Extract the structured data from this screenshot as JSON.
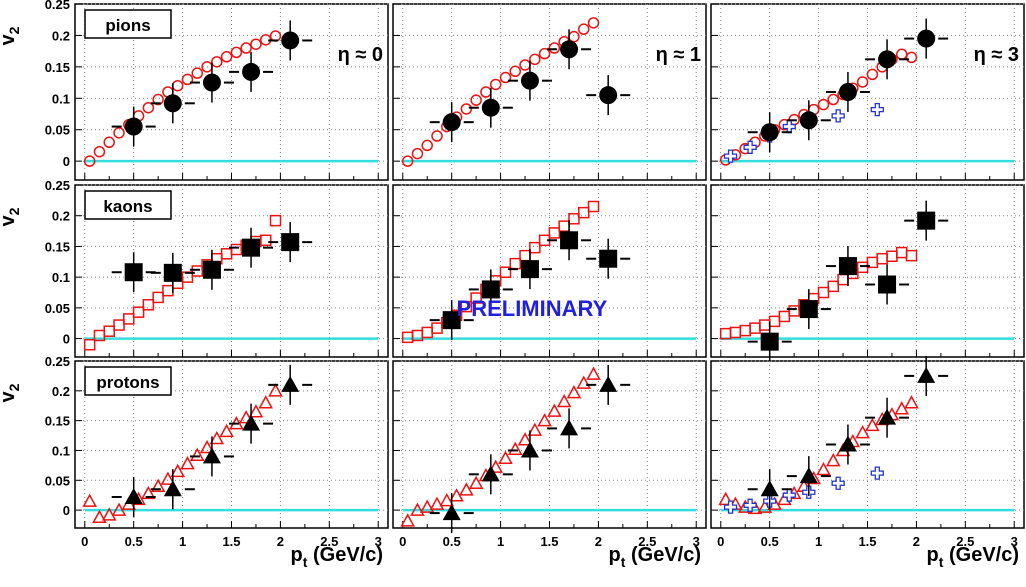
{
  "chart_data": {
    "type": "scatter",
    "layout": "3x3 grid of panels, rows = particle species, columns = pseudorapidity",
    "x_axis": {
      "label_main": "p",
      "label_sub": "t",
      "label_unit": "(GeV/c)",
      "range": [
        -0.1,
        3.1
      ],
      "ticks": [
        0,
        0.5,
        1,
        1.5,
        2,
        2.5,
        3
      ],
      "tick_labels": [
        "0",
        "0.5",
        "1",
        "1.5",
        "2",
        "2.5",
        "3"
      ]
    },
    "y_axis": {
      "label_main": "v",
      "label_sub": "2",
      "range": [
        -0.03,
        0.25
      ],
      "ticks": [
        0,
        0.05,
        0.1,
        0.15,
        0.2,
        0.25
      ],
      "tick_labels": [
        "0",
        "0.05",
        "0.1",
        "0.15",
        "0.2",
        "0.25"
      ]
    },
    "grid": true,
    "reference_line_color": "#33dddd",
    "preliminary_label": "PRELIMINARY",
    "preliminary_color": "#2020dd",
    "colors": {
      "measured": "#000000",
      "reference": "#ee1111",
      "forward": "#2233cc"
    },
    "rows": [
      {
        "species": "pions",
        "marker": "circle"
      },
      {
        "species": "kaons",
        "marker": "square"
      },
      {
        "species": "protons",
        "marker": "triangle"
      }
    ],
    "columns": [
      {
        "eta_label": "η ≈ 0"
      },
      {
        "eta_label": "η ≈ 1"
      },
      {
        "eta_label": "η ≈ 3"
      }
    ],
    "panels": [
      [
        {
          "black": [
            [
              0.5,
              0.055
            ],
            [
              0.9,
              0.092
            ],
            [
              1.3,
              0.125
            ],
            [
              1.7,
              0.142
            ],
            [
              2.1,
              0.192
            ]
          ],
          "red": [
            [
              0.05,
              0.0
            ],
            [
              0.15,
              0.015
            ],
            [
              0.25,
              0.03
            ],
            [
              0.35,
              0.045
            ],
            [
              0.45,
              0.058
            ],
            [
              0.55,
              0.072
            ],
            [
              0.65,
              0.085
            ],
            [
              0.75,
              0.098
            ],
            [
              0.85,
              0.11
            ],
            [
              0.95,
              0.12
            ],
            [
              1.05,
              0.13
            ],
            [
              1.15,
              0.14
            ],
            [
              1.25,
              0.15
            ],
            [
              1.35,
              0.158
            ],
            [
              1.45,
              0.166
            ],
            [
              1.55,
              0.173
            ],
            [
              1.65,
              0.18
            ],
            [
              1.75,
              0.186
            ],
            [
              1.85,
              0.193
            ],
            [
              1.95,
              0.199
            ]
          ],
          "blue": []
        },
        {
          "black": [
            [
              0.5,
              0.062
            ],
            [
              0.9,
              0.085
            ],
            [
              1.3,
              0.128
            ],
            [
              1.7,
              0.178
            ],
            [
              2.1,
              0.105
            ]
          ],
          "red": [
            [
              0.05,
              0.0
            ],
            [
              0.15,
              0.012
            ],
            [
              0.25,
              0.025
            ],
            [
              0.35,
              0.04
            ],
            [
              0.45,
              0.055
            ],
            [
              0.55,
              0.07
            ],
            [
              0.65,
              0.083
            ],
            [
              0.75,
              0.097
            ],
            [
              0.85,
              0.11
            ],
            [
              0.95,
              0.122
            ],
            [
              1.05,
              0.133
            ],
            [
              1.15,
              0.143
            ],
            [
              1.25,
              0.153
            ],
            [
              1.35,
              0.162
            ],
            [
              1.45,
              0.171
            ],
            [
              1.55,
              0.18
            ],
            [
              1.65,
              0.19
            ],
            [
              1.75,
              0.198
            ],
            [
              1.85,
              0.21
            ],
            [
              1.95,
              0.22
            ]
          ],
          "blue": []
        },
        {
          "black": [
            [
              0.5,
              0.046
            ],
            [
              0.9,
              0.065
            ],
            [
              1.3,
              0.11
            ],
            [
              1.7,
              0.162
            ],
            [
              2.1,
              0.195
            ]
          ],
          "red": [
            [
              0.05,
              0.002
            ],
            [
              0.15,
              0.01
            ],
            [
              0.25,
              0.02
            ],
            [
              0.35,
              0.03
            ],
            [
              0.45,
              0.04
            ],
            [
              0.55,
              0.05
            ],
            [
              0.65,
              0.058
            ],
            [
              0.75,
              0.066
            ],
            [
              0.85,
              0.074
            ],
            [
              0.95,
              0.082
            ],
            [
              1.05,
              0.09
            ],
            [
              1.15,
              0.098
            ],
            [
              1.25,
              0.106
            ],
            [
              1.35,
              0.116
            ],
            [
              1.45,
              0.126
            ],
            [
              1.55,
              0.138
            ],
            [
              1.65,
              0.15
            ],
            [
              1.75,
              0.162
            ],
            [
              1.85,
              0.17
            ],
            [
              1.95,
              0.165
            ]
          ],
          "blue": [
            [
              0.1,
              0.008
            ],
            [
              0.3,
              0.022
            ],
            [
              0.5,
              0.04
            ],
            [
              0.7,
              0.055
            ],
            [
              0.9,
              0.062
            ],
            [
              1.2,
              0.072
            ],
            [
              1.6,
              0.082
            ]
          ]
        }
      ],
      [
        {
          "black": [
            [
              0.5,
              0.108
            ],
            [
              0.9,
              0.107
            ],
            [
              1.3,
              0.112
            ],
            [
              1.7,
              0.148
            ],
            [
              2.1,
              0.157
            ]
          ],
          "red": [
            [
              0.05,
              -0.01
            ],
            [
              0.15,
              0.005
            ],
            [
              0.25,
              0.012
            ],
            [
              0.35,
              0.022
            ],
            [
              0.45,
              0.032
            ],
            [
              0.55,
              0.043
            ],
            [
              0.65,
              0.055
            ],
            [
              0.75,
              0.067
            ],
            [
              0.85,
              0.078
            ],
            [
              0.95,
              0.09
            ],
            [
              1.05,
              0.1
            ],
            [
              1.15,
              0.11
            ],
            [
              1.25,
              0.12
            ],
            [
              1.35,
              0.13
            ],
            [
              1.45,
              0.138
            ],
            [
              1.55,
              0.145
            ],
            [
              1.65,
              0.152
            ],
            [
              1.75,
              0.158
            ],
            [
              1.85,
              0.16
            ],
            [
              1.95,
              0.192
            ]
          ],
          "blue": []
        },
        {
          "black": [
            [
              0.5,
              0.03
            ],
            [
              0.9,
              0.08
            ],
            [
              1.3,
              0.113
            ],
            [
              1.7,
              0.16
            ],
            [
              2.1,
              0.13
            ]
          ],
          "red": [
            [
              0.05,
              0.002
            ],
            [
              0.15,
              0.005
            ],
            [
              0.25,
              0.01
            ],
            [
              0.35,
              0.017
            ],
            [
              0.45,
              0.026
            ],
            [
              0.55,
              0.038
            ],
            [
              0.65,
              0.052
            ],
            [
              0.75,
              0.066
            ],
            [
              0.85,
              0.08
            ],
            [
              0.95,
              0.094
            ],
            [
              1.05,
              0.108
            ],
            [
              1.15,
              0.122
            ],
            [
              1.25,
              0.135
            ],
            [
              1.35,
              0.148
            ],
            [
              1.45,
              0.16
            ],
            [
              1.55,
              0.172
            ],
            [
              1.65,
              0.183
            ],
            [
              1.75,
              0.195
            ],
            [
              1.85,
              0.205
            ],
            [
              1.95,
              0.215
            ]
          ],
          "blue": []
        },
        {
          "black": [
            [
              0.5,
              -0.005
            ],
            [
              0.9,
              0.048
            ],
            [
              1.3,
              0.118
            ],
            [
              1.7,
              0.088
            ],
            [
              2.1,
              0.192
            ]
          ],
          "red": [
            [
              0.05,
              0.008
            ],
            [
              0.15,
              0.01
            ],
            [
              0.25,
              0.013
            ],
            [
              0.35,
              0.017
            ],
            [
              0.45,
              0.022
            ],
            [
              0.55,
              0.028
            ],
            [
              0.65,
              0.036
            ],
            [
              0.75,
              0.045
            ],
            [
              0.85,
              0.055
            ],
            [
              0.95,
              0.065
            ],
            [
              1.05,
              0.075
            ],
            [
              1.15,
              0.085
            ],
            [
              1.25,
              0.096
            ],
            [
              1.35,
              0.106
            ],
            [
              1.45,
              0.116
            ],
            [
              1.55,
              0.124
            ],
            [
              1.65,
              0.13
            ],
            [
              1.75,
              0.134
            ],
            [
              1.85,
              0.14
            ],
            [
              1.95,
              0.135
            ]
          ],
          "blue": []
        }
      ],
      [
        {
          "black": [
            [
              0.5,
              0.022
            ],
            [
              0.9,
              0.035
            ],
            [
              1.3,
              0.09
            ],
            [
              1.7,
              0.145
            ],
            [
              2.1,
              0.21
            ]
          ],
          "red": [
            [
              0.05,
              0.015
            ],
            [
              0.15,
              -0.012
            ],
            [
              0.25,
              -0.008
            ],
            [
              0.35,
              0.0
            ],
            [
              0.45,
              0.01
            ],
            [
              0.55,
              0.018
            ],
            [
              0.65,
              0.028
            ],
            [
              0.75,
              0.04
            ],
            [
              0.85,
              0.052
            ],
            [
              0.95,
              0.065
            ],
            [
              1.05,
              0.078
            ],
            [
              1.15,
              0.092
            ],
            [
              1.25,
              0.105
            ],
            [
              1.35,
              0.12
            ],
            [
              1.45,
              0.132
            ],
            [
              1.55,
              0.145
            ],
            [
              1.65,
              0.155
            ],
            [
              1.75,
              0.165
            ],
            [
              1.85,
              0.18
            ],
            [
              1.95,
              0.2
            ]
          ],
          "blue": []
        },
        {
          "black": [
            [
              0.5,
              -0.005
            ],
            [
              0.9,
              0.06
            ],
            [
              1.3,
              0.1
            ],
            [
              1.7,
              0.137
            ],
            [
              2.1,
              0.21
            ]
          ],
          "red": [
            [
              0.05,
              -0.018
            ],
            [
              0.15,
              0.0
            ],
            [
              0.25,
              0.005
            ],
            [
              0.35,
              0.01
            ],
            [
              0.45,
              0.016
            ],
            [
              0.55,
              0.024
            ],
            [
              0.65,
              0.034
            ],
            [
              0.75,
              0.045
            ],
            [
              0.85,
              0.058
            ],
            [
              0.95,
              0.072
            ],
            [
              1.05,
              0.087
            ],
            [
              1.15,
              0.102
            ],
            [
              1.25,
              0.118
            ],
            [
              1.35,
              0.134
            ],
            [
              1.45,
              0.15
            ],
            [
              1.55,
              0.166
            ],
            [
              1.65,
              0.182
            ],
            [
              1.75,
              0.197
            ],
            [
              1.85,
              0.213
            ],
            [
              1.95,
              0.228
            ]
          ],
          "blue": []
        },
        {
          "black": [
            [
              0.5,
              0.035
            ],
            [
              0.9,
              0.057
            ],
            [
              1.3,
              0.11
            ],
            [
              1.7,
              0.155
            ],
            [
              2.1,
              0.225
            ]
          ],
          "red": [
            [
              0.05,
              0.018
            ],
            [
              0.15,
              0.01
            ],
            [
              0.25,
              0.005
            ],
            [
              0.35,
              0.003
            ],
            [
              0.45,
              0.005
            ],
            [
              0.55,
              0.01
            ],
            [
              0.65,
              0.018
            ],
            [
              0.75,
              0.028
            ],
            [
              0.85,
              0.04
            ],
            [
              0.95,
              0.053
            ],
            [
              1.05,
              0.068
            ],
            [
              1.15,
              0.083
            ],
            [
              1.25,
              0.1
            ],
            [
              1.35,
              0.115
            ],
            [
              1.45,
              0.13
            ],
            [
              1.55,
              0.142
            ],
            [
              1.65,
              0.152
            ],
            [
              1.75,
              0.16
            ],
            [
              1.85,
              0.17
            ],
            [
              1.95,
              0.18
            ]
          ],
          "blue": [
            [
              0.1,
              0.005
            ],
            [
              0.3,
              0.008
            ],
            [
              0.5,
              0.015
            ],
            [
              0.7,
              0.025
            ],
            [
              0.9,
              0.03
            ],
            [
              1.2,
              0.045
            ],
            [
              1.6,
              0.062
            ]
          ]
        }
      ]
    ]
  }
}
